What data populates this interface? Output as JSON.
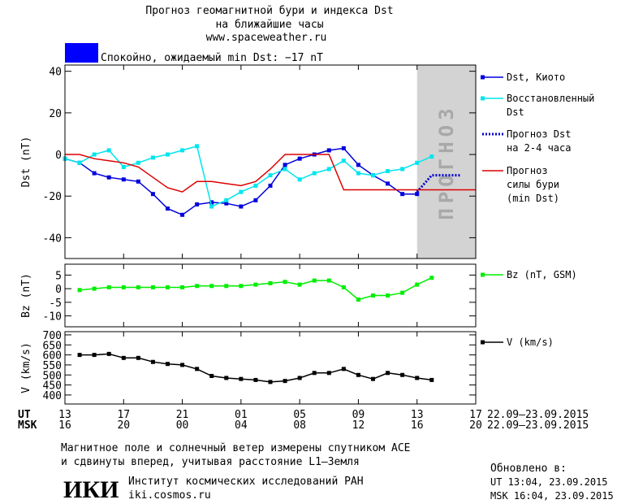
{
  "header": {
    "title": "Прогноз геомагнитной бури и индекса Dst\nна ближайшие часы",
    "url": "www.spaceweather.ru",
    "status": "Спокойно, ожидаемый min Dst: −17 nT",
    "status_color": "#0000ff"
  },
  "chart_data": [
    {
      "type": "line",
      "y_label": "Dst (nT)",
      "xlim": [
        13,
        41
      ],
      "ylim": [
        -50,
        43
      ],
      "yticks": [
        40,
        20,
        0,
        -20,
        -40
      ],
      "forecast_xrange": [
        37,
        41
      ],
      "forecast_label": "ПРОГНОЗ",
      "series": [
        {
          "name": "Dst, Киото",
          "color": "#0000dd",
          "marker": "square",
          "dash": "solid",
          "x": [
            13,
            14,
            15,
            16,
            17,
            18,
            19,
            20,
            21,
            22,
            23,
            24,
            25,
            26,
            27,
            28,
            29,
            30,
            31,
            32,
            33,
            34,
            35,
            36,
            37
          ],
          "values": [
            -2,
            -4,
            -9,
            -11,
            -12,
            -13,
            -19,
            -26,
            -29,
            -24,
            -23,
            -23.5,
            -25,
            -22,
            -15,
            -5,
            -2,
            0,
            2,
            3,
            -5,
            -10,
            -14,
            -19,
            -19
          ]
        },
        {
          "name": "Восстановленный\nDst",
          "color": "#00e5ee",
          "marker": "square",
          "dash": "solid",
          "x": [
            13,
            14,
            15,
            16,
            17,
            18,
            19,
            20,
            21,
            22,
            23,
            24,
            25,
            26,
            27,
            28,
            29,
            30,
            31,
            32,
            33,
            34,
            35,
            36,
            37,
            38
          ],
          "values": [
            -2,
            -4,
            0,
            2,
            -6,
            -4,
            -1.5,
            0,
            2,
            4,
            -25,
            -22,
            -18,
            -15,
            -10,
            -7,
            -12,
            -9,
            -7,
            -3,
            -9,
            -10,
            -8,
            -7,
            -4,
            -1
          ]
        },
        {
          "name": "Прогноз Dst\nна 2-4 часа",
          "color": "#0000cc",
          "marker": null,
          "dash": "dot",
          "x": [
            37,
            38,
            40
          ],
          "values": [
            -18,
            -10,
            -10
          ]
        },
        {
          "name": "Прогноз\nсилы бури\n(min Dst)",
          "color": "#dd0000",
          "marker": null,
          "dash": "solid",
          "x": [
            13,
            14,
            15,
            16,
            17,
            18,
            19,
            20,
            21,
            22,
            23,
            24,
            25,
            26,
            27,
            28,
            29,
            30,
            31,
            32,
            41
          ],
          "values": [
            0,
            0,
            -2,
            -3,
            -4,
            -6,
            -11,
            -16,
            -18,
            -13,
            -13,
            -14,
            -15,
            -13,
            -7,
            0,
            0,
            0,
            0,
            -17,
            -17
          ]
        }
      ]
    },
    {
      "type": "line",
      "y_label": "Bz (nT)",
      "xlim": [
        13,
        41
      ],
      "ylim": [
        -14,
        9
      ],
      "yticks": [
        5,
        0,
        -5,
        -10
      ],
      "series": [
        {
          "name": "Bz (nT, GSM)",
          "color": "#00ee00",
          "marker": "square",
          "dash": "solid",
          "x": [
            14,
            15,
            16,
            17,
            18,
            19,
            20,
            21,
            22,
            23,
            24,
            25,
            26,
            27,
            28,
            29,
            30,
            31,
            32,
            33,
            34,
            35,
            36,
            37,
            38
          ],
          "values": [
            -0.5,
            0,
            0.5,
            0.5,
            0.5,
            0.5,
            0.5,
            0.5,
            1,
            1,
            1,
            1,
            1.5,
            2,
            2.5,
            1.5,
            3,
            3,
            0.5,
            -4,
            -2.5,
            -2.5,
            -1.5,
            1.5,
            4
          ]
        }
      ]
    },
    {
      "type": "line",
      "y_label": "V (km/s)",
      "xlim": [
        13,
        41
      ],
      "ylim": [
        355,
        716
      ],
      "yticks": [
        700,
        650,
        600,
        550,
        500,
        450,
        400
      ],
      "xticks": [
        {
          "value": 13,
          "label": "13"
        },
        {
          "value": 17,
          "label": "17"
        },
        {
          "value": 21,
          "label": "21"
        },
        {
          "value": 25,
          "label": "01"
        },
        {
          "value": 29,
          "label": "05"
        },
        {
          "value": 33,
          "label": "09"
        },
        {
          "value": 37,
          "label": "13"
        },
        {
          "value": 41,
          "label": "17"
        }
      ],
      "xticks_msk": [
        "16",
        "20",
        "00",
        "04",
        "08",
        "12",
        "16",
        "20"
      ],
      "ut_label": "UT",
      "msk_label": "MSK",
      "ut_dates": "22.09–23.09.2015",
      "msk_dates": "22.09–23.09.2015",
      "series": [
        {
          "name": "V (km/s)",
          "color": "#000000",
          "marker": "square",
          "dash": "solid",
          "x": [
            14,
            15,
            16,
            17,
            18,
            19,
            20,
            21,
            22,
            23,
            24,
            25,
            26,
            27,
            28,
            29,
            30,
            31,
            32,
            33,
            34,
            35,
            36,
            37,
            38
          ],
          "values": [
            600,
            600,
            605,
            585,
            585,
            565,
            555,
            550,
            530,
            495,
            485,
            480,
            475,
            465,
            470,
            485,
            510,
            510,
            530,
            500,
            480,
            510,
            500,
            485,
            475
          ]
        }
      ]
    }
  ],
  "footer": {
    "note": "Магнитное поле и солнечный ветер измерены спутником ACE\nи сдвинуты вперед, учитывая расстояние L1–Земля",
    "logo": "ИКИ",
    "institute": "Институт космических исследований РАН",
    "site": "iki.cosmos.ru",
    "updated": "Обновлено в:",
    "updated_ut": "UT  13:04, 23.09.2015",
    "updated_msk": "MSK 16:04, 23.09.2015"
  }
}
